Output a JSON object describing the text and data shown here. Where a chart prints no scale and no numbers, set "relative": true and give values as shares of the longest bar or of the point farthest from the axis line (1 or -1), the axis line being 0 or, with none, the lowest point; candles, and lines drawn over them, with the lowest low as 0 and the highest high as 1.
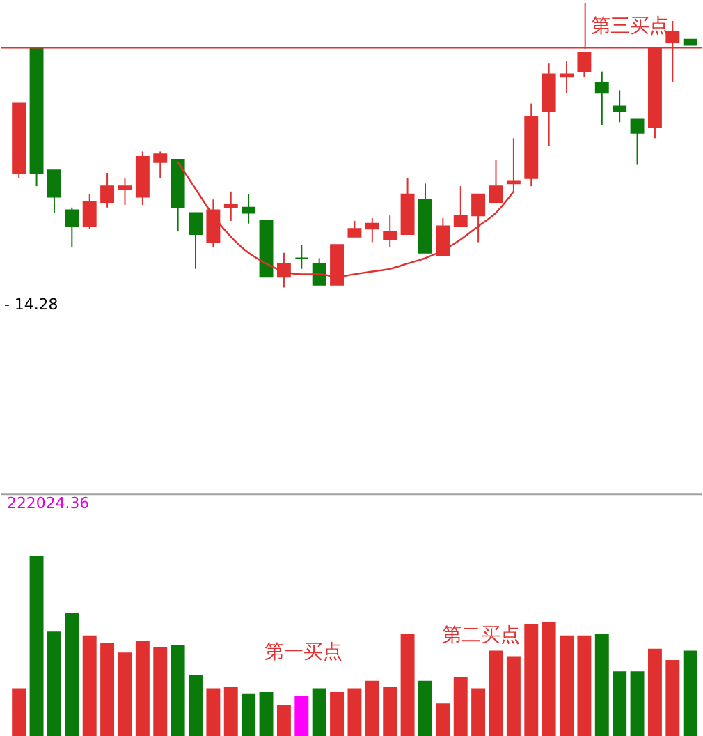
{
  "chart_data": [
    {
      "type": "candlestick",
      "relative": true,
      "categories": [
        null,
        null,
        null,
        null,
        null,
        null,
        null,
        null,
        null,
        null,
        null,
        null,
        null,
        null,
        null,
        null,
        null,
        null,
        null,
        null,
        null,
        null,
        null,
        null,
        null,
        null,
        null,
        null,
        null,
        null,
        null,
        null,
        null,
        null,
        null,
        null,
        null,
        null,
        null
      ],
      "ohlc": [
        [
          0.43,
          0.69,
          0.41,
          0.69
        ],
        [
          0.9,
          0.9,
          0.38,
          0.43
        ],
        [
          0.44,
          0.44,
          0.28,
          0.34
        ],
        [
          0.29,
          0.3,
          0.15,
          0.23
        ],
        [
          0.23,
          0.35,
          0.22,
          0.32
        ],
        [
          0.32,
          0.43,
          0.3,
          0.38
        ],
        [
          0.37,
          0.41,
          0.31,
          0.38
        ],
        [
          0.34,
          0.51,
          0.31,
          0.49
        ],
        [
          0.47,
          0.51,
          0.41,
          0.5
        ],
        [
          0.48,
          0.48,
          0.21,
          0.3
        ],
        [
          0.28,
          0.28,
          0.07,
          0.2
        ],
        [
          0.17,
          0.33,
          0.15,
          0.29
        ],
        [
          0.3,
          0.36,
          0.25,
          0.31
        ],
        [
          0.3,
          0.35,
          0.24,
          0.28
        ],
        [
          0.25,
          0.25,
          0.04,
          0.04
        ],
        [
          0.04,
          0.13,
          0,
          0.09
        ],
        [
          0.11,
          0.16,
          0.07,
          0.11
        ],
        [
          0.09,
          0.11,
          0.01,
          0.01
        ],
        [
          0.01,
          0.16,
          0.01,
          0.16
        ],
        [
          0.19,
          0.25,
          0.19,
          0.22
        ],
        [
          0.22,
          0.26,
          0.17,
          0.24
        ],
        [
          0.18,
          0.27,
          0.15,
          0.21
        ],
        [
          0.2,
          0.41,
          0.2,
          0.35
        ],
        [
          0.33,
          0.39,
          0.13,
          0.13
        ],
        [
          0.12,
          0.26,
          0.12,
          0.23
        ],
        [
          0.23,
          0.38,
          0.23,
          0.27
        ],
        [
          0.27,
          0.35,
          0.17,
          0.35
        ],
        [
          0.32,
          0.48,
          0.32,
          0.38
        ],
        [
          0.39,
          0.56,
          0.36,
          0.4
        ],
        [
          0.41,
          0.69,
          0.38,
          0.64
        ],
        [
          0.66,
          0.84,
          0.53,
          0.8
        ],
        [
          0.79,
          0.85,
          0.73,
          0.8
        ],
        [
          0.81,
          0.88,
          0.79,
          0.88
        ],
        [
          0.77,
          0.81,
          0.61,
          0.73
        ],
        [
          0.68,
          0.74,
          0.62,
          0.66
        ],
        [
          0.63,
          0.63,
          0.46,
          0.58
        ],
        [
          0.6,
          0.9,
          0.56,
          0.9
        ],
        [
          0.92,
          1,
          0.77,
          0.96
        ],
        [
          0.93,
          0.93,
          0.91,
          0.91
        ]
      ],
      "colors": [
        "#e03030",
        "#0a7a0a",
        "#0a7a0a",
        "#0a7a0a",
        "#e03030",
        "#e03030",
        "#e03030",
        "#e03030",
        "#e03030",
        "#0a7a0a",
        "#0a7a0a",
        "#e03030",
        "#e03030",
        "#0a7a0a",
        "#0a7a0a",
        "#e03030",
        "#0a7a0a",
        "#0a7a0a",
        "#e03030",
        "#e03030",
        "#e03030",
        "#e03030",
        "#e03030",
        "#0a7a0a",
        "#e03030",
        "#e03030",
        "#e03030",
        "#e03030",
        "#e03030",
        "#e03030",
        "#e03030",
        "#e03030",
        "#e03030",
        "#0a7a0a",
        "#0a7a0a",
        "#0a7a0a",
        "#e03030",
        "#e03030",
        "#0a7a0a"
      ],
      "series": [
        {
          "type": "line",
          "color": "#e03030",
          "values": [
            null,
            null,
            null,
            null,
            null,
            null,
            null,
            null,
            null,
            0.47,
            0.37,
            0.27,
            0.19,
            0.13,
            0.09,
            0.06,
            0.05,
            0.05,
            0.04,
            0.05,
            0.06,
            0.07,
            0.09,
            0.11,
            0.14,
            0.18,
            0.23,
            0.28,
            0.36,
            null,
            null,
            null,
            null,
            null,
            null,
            null,
            null,
            null,
            null
          ]
        }
      ],
      "ref_lines": [
        {
          "axis": "y",
          "value": 0.9,
          "color": "#e03030"
        }
      ],
      "annotations": [
        "第三买点",
        "- 14.28"
      ]
    },
    {
      "type": "bar",
      "relative": true,
      "categories": [
        null,
        null,
        null,
        null,
        null,
        null,
        null,
        null,
        null,
        null,
        null,
        null,
        null,
        null,
        null,
        null,
        null,
        null,
        null,
        null,
        null,
        null,
        null,
        null,
        null,
        null,
        null,
        null,
        null,
        null,
        null,
        null,
        null,
        null,
        null,
        null,
        null,
        null,
        null
      ],
      "values": [
        0.3,
        1.0,
        0.6,
        0.7,
        0.58,
        0.54,
        0.49,
        0.55,
        0.52,
        0.53,
        0.37,
        0.3,
        0.31,
        0.27,
        0.28,
        0.21,
        0.26,
        0.3,
        0.28,
        0.3,
        0.34,
        0.31,
        0.59,
        0.34,
        0.22,
        0.36,
        0.3,
        0.5,
        0.47,
        0.64,
        0.65,
        0.58,
        0.58,
        0.59,
        0.39,
        0.39,
        0.51,
        0.45,
        0.5
      ],
      "colors": [
        "#e03030",
        "#0a7a0a",
        "#0a7a0a",
        "#0a7a0a",
        "#e03030",
        "#e03030",
        "#e03030",
        "#e03030",
        "#e03030",
        "#0a7a0a",
        "#0a7a0a",
        "#e03030",
        "#e03030",
        "#0a7a0a",
        "#0a7a0a",
        "#e03030",
        "#ff00ff",
        "#0a7a0a",
        "#e03030",
        "#e03030",
        "#e03030",
        "#e03030",
        "#e03030",
        "#0a7a0a",
        "#e03030",
        "#e03030",
        "#e03030",
        "#e03030",
        "#e03030",
        "#e03030",
        "#e03030",
        "#e03030",
        "#e03030",
        "#0a7a0a",
        "#0a7a0a",
        "#0a7a0a",
        "#e03030",
        "#e03030",
        "#0a7a0a"
      ],
      "annotations": [
        "222024.36",
        "第一买点",
        "第二买点"
      ]
    }
  ]
}
